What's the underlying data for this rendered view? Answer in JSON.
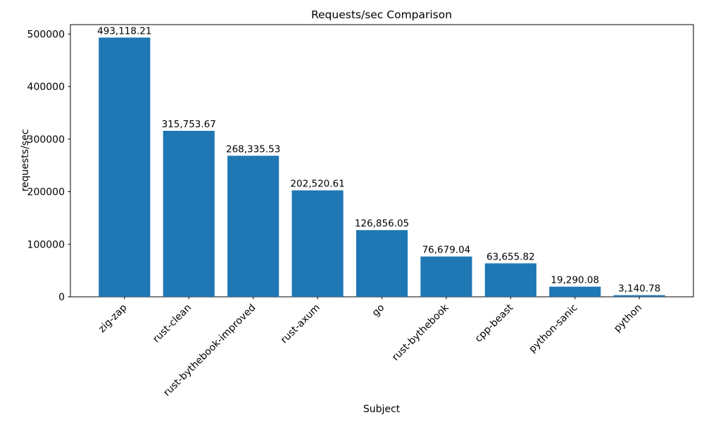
{
  "chart_data": {
    "type": "bar",
    "title": "Requests/sec Comparison",
    "xlabel": "Subject",
    "ylabel": "requests/sec",
    "categories": [
      "zig-zap",
      "rust-clean",
      "rust-bythebook-improved",
      "rust-axum",
      "go",
      "rust-bythebook",
      "cpp-beast",
      "python-sanic",
      "python"
    ],
    "values": [
      493118.21,
      315753.67,
      268335.53,
      202520.61,
      126856.05,
      76679.04,
      63655.82,
      19290.08,
      3140.78
    ],
    "value_labels": [
      "493,118.21",
      "315,753.67",
      "268,335.53",
      "202,520.61",
      "126,856.05",
      "76,679.04",
      "63,655.82",
      "19,290.08",
      "3,140.78"
    ],
    "y_ticks": [
      0,
      100000,
      200000,
      300000,
      400000,
      500000
    ],
    "y_tick_labels": [
      "0",
      "100000",
      "200000",
      "300000",
      "400000",
      "500000"
    ],
    "ylim": [
      0,
      517774
    ],
    "bar_color": "#1f77b4",
    "axis_color": "#000000",
    "background_color": "#ffffff",
    "grid": false,
    "legend": "none",
    "x_tick_rotation": 45,
    "bar_width_fraction": 0.8
  }
}
